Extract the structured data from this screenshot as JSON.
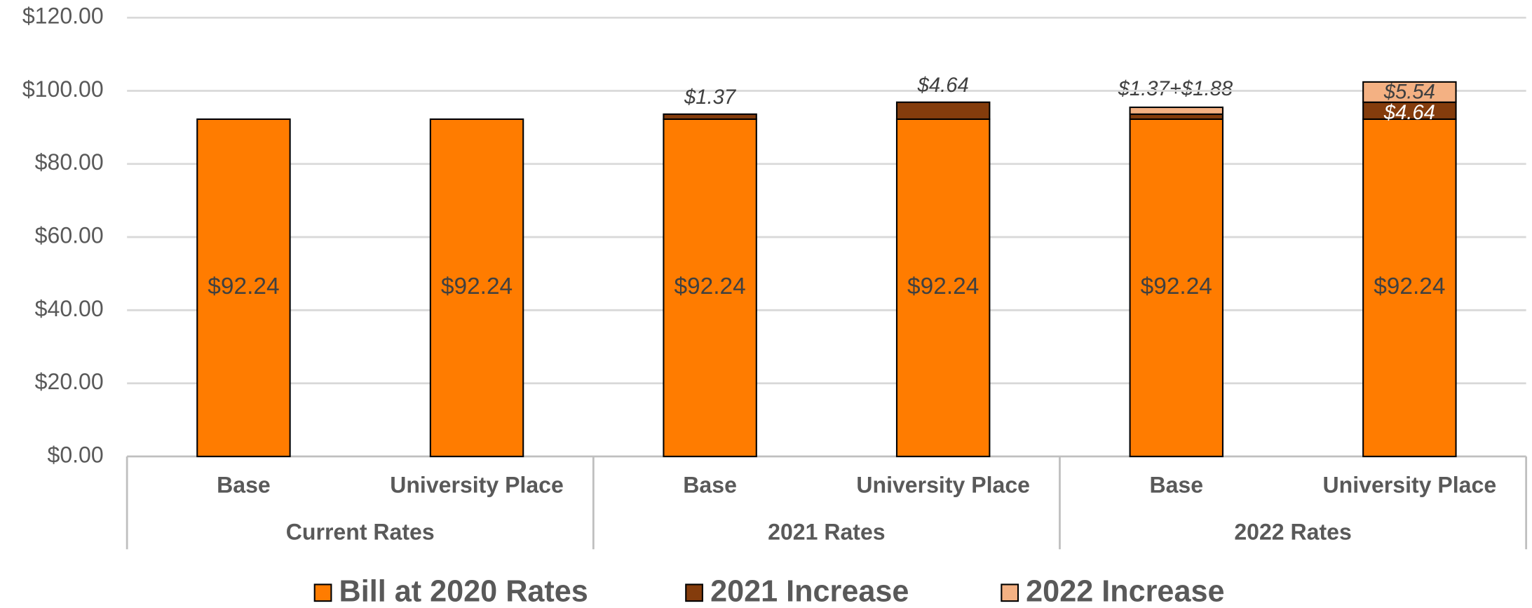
{
  "chart_data": {
    "type": "stacked_bar",
    "categories": [
      "Base",
      "University Place",
      "Base",
      "University Place",
      "Base",
      "University Place"
    ],
    "groups": [
      "Current Rates",
      "2021 Rates",
      "2022 Rates"
    ],
    "series": [
      {
        "name": "Bill at 2020 Rates",
        "color": "#ff7c00",
        "values": [
          92.24,
          92.24,
          92.24,
          92.24,
          92.24,
          92.24
        ],
        "value_labels": [
          "$92.24",
          "$92.24",
          "$92.24",
          "$92.24",
          "$92.24",
          "$92.24"
        ]
      },
      {
        "name": "2021 Increase",
        "color": "#843c0c",
        "values": [
          0,
          0,
          1.37,
          4.64,
          1.37,
          4.64
        ],
        "value_labels": [
          null,
          null,
          "$1.37",
          "$4.64",
          null,
          "$4.64"
        ]
      },
      {
        "name": "2022 Increase",
        "color": "#f4b183",
        "values": [
          0,
          0,
          0,
          0,
          1.88,
          5.54
        ],
        "value_labels": [
          null,
          null,
          null,
          null,
          null,
          "$5.54"
        ]
      }
    ],
    "annotations": [
      "$1.37+$1.88"
    ],
    "ylim": [
      0,
      120
    ],
    "yticks": [
      {
        "value": 0,
        "label": "$0.00"
      },
      {
        "value": 20,
        "label": "$20.00"
      },
      {
        "value": 40,
        "label": "$40.00"
      },
      {
        "value": 60,
        "label": "$60.00"
      },
      {
        "value": 80,
        "label": "$80.00"
      },
      {
        "value": 100,
        "label": "$100.00"
      },
      {
        "value": 120,
        "label": "$120.00"
      }
    ],
    "grid": true
  }
}
